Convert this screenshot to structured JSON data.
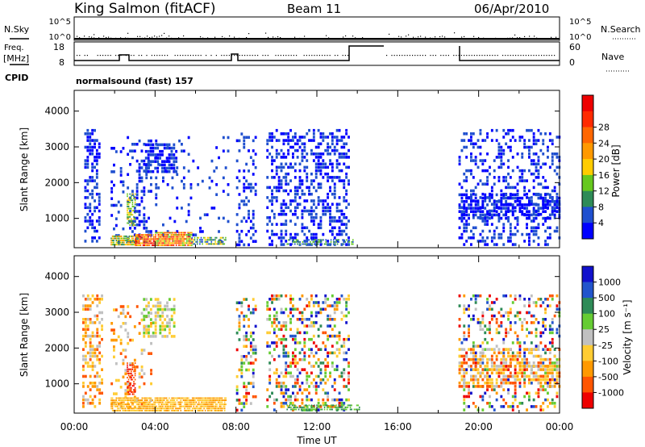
{
  "header": {
    "station": "King Salmon (fitACF)",
    "beam": "Beam 11",
    "date": "06/Apr/2010"
  },
  "side_labels": {
    "nsky": "N.Sky",
    "nsearch": "N.Search",
    "freq_top": "Freq.",
    "freq_unit": "[MHz]",
    "nave": "Nave",
    "cpid": "CPID",
    "cpid_value": "normalsound (fast) 157"
  },
  "mini_axes": {
    "noise_ticks": [
      "10^5",
      "10^0"
    ],
    "freq_ticks_left": [
      "18",
      "8"
    ],
    "nave_ticks_right": [
      "60",
      "0"
    ]
  },
  "colors": {
    "power": [
      "#0000ff",
      "#1f4fcf",
      "#2e8b57",
      "#66c81e",
      "#ffcc00",
      "#ff9900",
      "#ff6600",
      "#ff2a00",
      "#ee0000"
    ],
    "velocity": [
      "#1111cc",
      "#2255cc",
      "#2e8b57",
      "#66cc33",
      "#c0c0c0",
      "#ffcc33",
      "#ff9900",
      "#ff5500",
      "#ee0000"
    ]
  },
  "chart_data": [
    {
      "type": "heatmap",
      "name": "power",
      "xlabel": "",
      "ylabel": "Slant Range [km]",
      "x_ticks": [
        "00:00",
        "04:00",
        "08:00",
        "12:00",
        "16:00",
        "20:00",
        "00:00"
      ],
      "xlim_hours": [
        0,
        24
      ],
      "y_ticks": [
        1000,
        2000,
        3000,
        4000
      ],
      "ylim": [
        180,
        4580
      ],
      "colorbar": {
        "label": "Power [dB]",
        "ticks": [
          "4",
          "8",
          "12",
          "16",
          "20",
          "24",
          "28"
        ]
      },
      "scatter_regions": [
        {
          "start": 0.5,
          "end": 1.3,
          "rmin": 400,
          "rmax": 3500,
          "density": 0.5,
          "level": [
            0,
            1
          ]
        },
        {
          "start": 1.8,
          "end": 2.4,
          "rmin": 300,
          "rmax": 3000,
          "density": 0.15,
          "level": [
            0,
            1
          ]
        },
        {
          "start": 2.6,
          "end": 3.8,
          "rmin": 300,
          "rmax": 3300,
          "density": 0.3,
          "level": [
            0,
            1
          ]
        },
        {
          "start": 3.5,
          "end": 5.0,
          "rmin": 2300,
          "rmax": 3100,
          "density": 0.7,
          "level": [
            0,
            1
          ]
        },
        {
          "start": 4.0,
          "end": 7.6,
          "rmin": 300,
          "rmax": 3300,
          "density": 0.08,
          "level": [
            0,
            1
          ]
        },
        {
          "start": 8.0,
          "end": 9.0,
          "rmin": 300,
          "rmax": 3400,
          "density": 0.3,
          "level": [
            0,
            1
          ]
        },
        {
          "start": 9.5,
          "end": 13.6,
          "rmin": 300,
          "rmax": 3500,
          "density": 0.38,
          "level": [
            0,
            1
          ]
        },
        {
          "start": 19.0,
          "end": 24.0,
          "rmin": 300,
          "rmax": 3500,
          "density": 0.3,
          "level": [
            0,
            1
          ]
        },
        {
          "start": 19.0,
          "end": 24.0,
          "rmin": 950,
          "rmax": 1700,
          "density": 0.55,
          "level": [
            0,
            1
          ]
        }
      ],
      "intense_regions": [
        {
          "start": 1.8,
          "end": 3.2,
          "rmin": 250,
          "rmax": 520,
          "density": 0.85,
          "level": [
            2,
            5
          ]
        },
        {
          "start": 3.0,
          "end": 4.0,
          "rmin": 250,
          "rmax": 560,
          "density": 0.9,
          "level": [
            4,
            8
          ]
        },
        {
          "start": 4.0,
          "end": 5.8,
          "rmin": 250,
          "rmax": 620,
          "density": 0.9,
          "level": [
            3,
            7
          ]
        },
        {
          "start": 5.8,
          "end": 7.5,
          "rmin": 250,
          "rmax": 480,
          "density": 0.7,
          "level": [
            1,
            4
          ]
        },
        {
          "start": 2.6,
          "end": 3.0,
          "rmin": 800,
          "rmax": 1700,
          "density": 0.6,
          "level": [
            2,
            4
          ]
        },
        {
          "start": 10.5,
          "end": 13.8,
          "rmin": 250,
          "rmax": 420,
          "density": 0.5,
          "level": [
            1,
            3
          ]
        }
      ]
    },
    {
      "type": "heatmap",
      "name": "velocity",
      "xlabel": "Time UT",
      "ylabel": "Slant Range [km]",
      "x_ticks": [
        "00:00",
        "04:00",
        "08:00",
        "12:00",
        "16:00",
        "20:00",
        "00:00"
      ],
      "xlim_hours": [
        0,
        24
      ],
      "y_ticks": [
        1000,
        2000,
        3000,
        4000
      ],
      "ylim": [
        180,
        4580
      ],
      "colorbar": {
        "label": "Velocity [m s⁻¹]",
        "ticks": [
          "1000",
          "500",
          "100",
          "25",
          "-25",
          "-100",
          "-500",
          "-1000"
        ]
      },
      "scatter_regions": [
        {
          "start": 0.4,
          "end": 1.4,
          "rmin": 400,
          "rmax": 3500,
          "density": 0.45,
          "level": [
            4,
            7
          ]
        },
        {
          "start": 1.8,
          "end": 3.8,
          "rmin": 300,
          "rmax": 3200,
          "density": 0.2,
          "level": [
            4,
            7
          ]
        },
        {
          "start": 3.4,
          "end": 5.0,
          "rmin": 2300,
          "rmax": 3400,
          "density": 0.55,
          "level": [
            3,
            5
          ]
        },
        {
          "start": 8.0,
          "end": 9.0,
          "rmin": 300,
          "rmax": 3400,
          "density": 0.3,
          "level": [
            0,
            8
          ]
        },
        {
          "start": 9.5,
          "end": 13.6,
          "rmin": 300,
          "rmax": 3500,
          "density": 0.35,
          "level": [
            0,
            8
          ]
        },
        {
          "start": 19.0,
          "end": 24.0,
          "rmin": 300,
          "rmax": 3500,
          "density": 0.28,
          "level": [
            0,
            8
          ]
        },
        {
          "start": 19.0,
          "end": 24.0,
          "rmin": 900,
          "rmax": 2000,
          "density": 0.5,
          "level": [
            4,
            7
          ]
        }
      ],
      "intense_regions": [
        {
          "start": 1.8,
          "end": 7.5,
          "rmin": 250,
          "rmax": 620,
          "density": 0.85,
          "level": [
            5,
            6
          ]
        },
        {
          "start": 2.6,
          "end": 3.0,
          "rmin": 700,
          "rmax": 1600,
          "density": 0.6,
          "level": [
            7,
            8
          ]
        },
        {
          "start": 10.5,
          "end": 14.2,
          "rmin": 250,
          "rmax": 420,
          "density": 0.55,
          "level": [
            2,
            3
          ]
        }
      ]
    }
  ]
}
